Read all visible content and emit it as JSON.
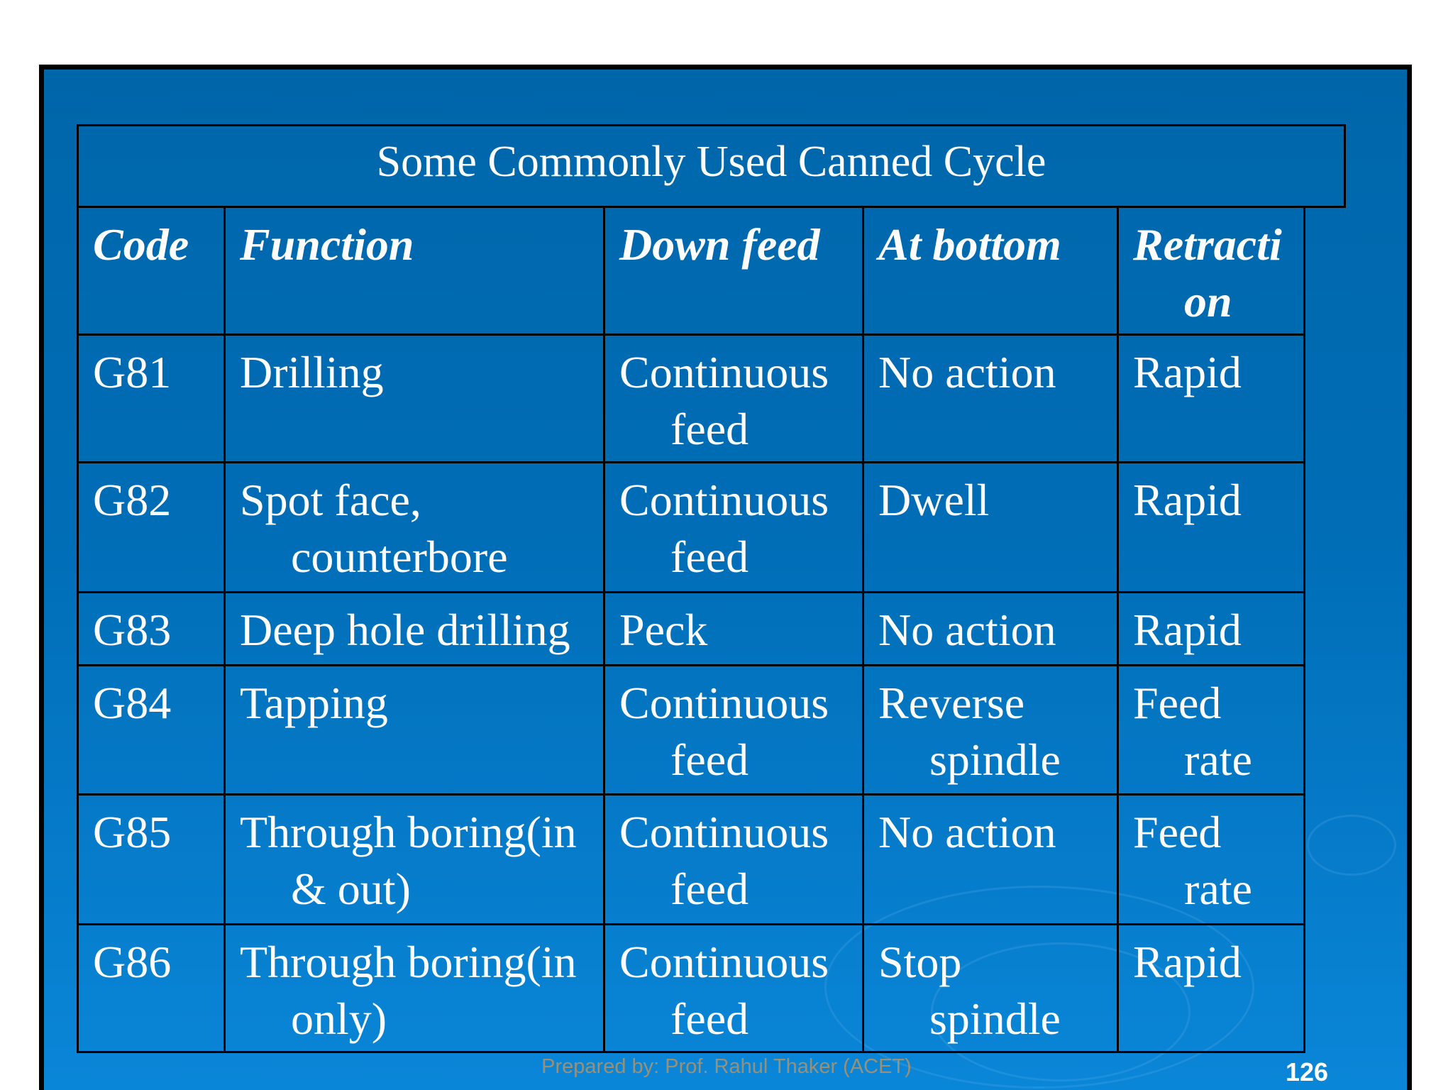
{
  "title": "Some Commonly Used Canned Cycle",
  "headers": [
    [
      "Code"
    ],
    [
      "Function"
    ],
    [
      "Down feed"
    ],
    [
      "At bottom"
    ],
    [
      "Retracti",
      "on"
    ]
  ],
  "rows": [
    [
      [
        "G81"
      ],
      [
        "Drilling"
      ],
      [
        "Continuous",
        "feed"
      ],
      [
        "No action"
      ],
      [
        "Rapid"
      ]
    ],
    [
      [
        "G82"
      ],
      [
        "Spot face,",
        "counterbore"
      ],
      [
        "Continuous",
        "feed"
      ],
      [
        "Dwell"
      ],
      [
        "Rapid"
      ]
    ],
    [
      [
        "G83"
      ],
      [
        "Deep hole drilling"
      ],
      [
        "Peck"
      ],
      [
        "No action"
      ],
      [
        "Rapid"
      ]
    ],
    [
      [
        "G84"
      ],
      [
        "Tapping"
      ],
      [
        "Continuous",
        "feed"
      ],
      [
        "Reverse",
        "spindle"
      ],
      [
        "Feed",
        "rate"
      ]
    ],
    [
      [
        "G85"
      ],
      [
        "Through boring(in",
        "& out)"
      ],
      [
        "Continuous",
        "feed"
      ],
      [
        "No action"
      ],
      [
        "Feed",
        "rate"
      ]
    ],
    [
      [
        "G86"
      ],
      [
        "Through boring(in",
        "only)"
      ],
      [
        "Continuous",
        "feed"
      ],
      [
        "Stop",
        "spindle"
      ],
      [
        "Rapid"
      ]
    ]
  ],
  "watermark": "Prepared by: Prof. Rahul Thaker (ACET)",
  "page_number": "126",
  "colors": {
    "background_top": "#0066aa",
    "background_bottom": "#0a86d8",
    "text": "#ffffff",
    "border": "#000000"
  }
}
